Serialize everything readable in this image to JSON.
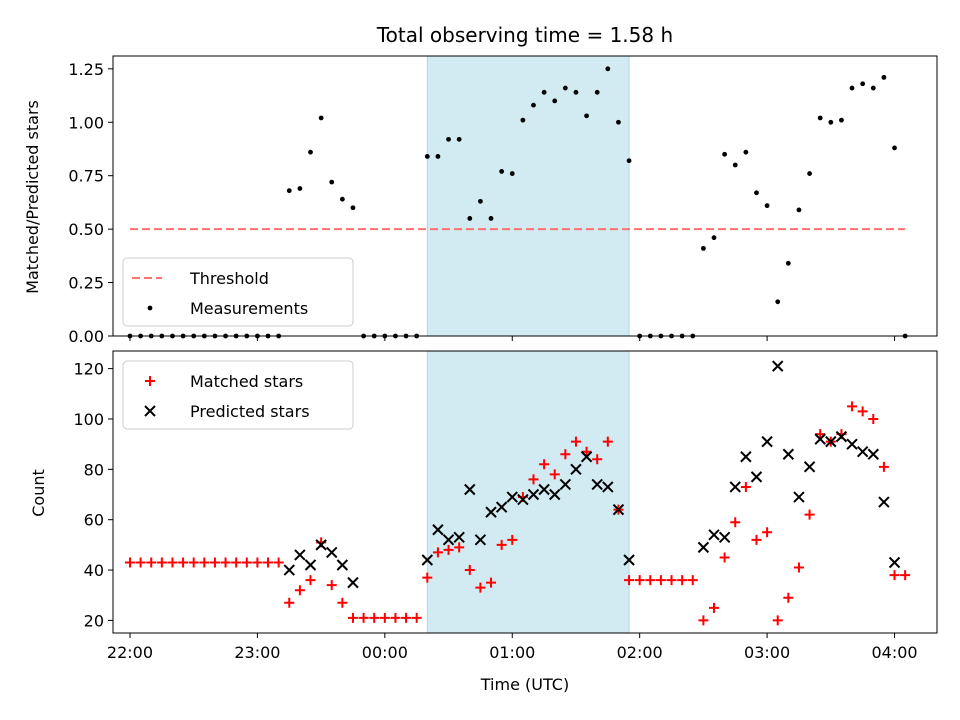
{
  "chart_data": {
    "title": "Total observing time = 1.58 h",
    "type": "scatter",
    "x_unit": "UTC time",
    "x_ticks": [
      "22:00",
      "23:00",
      "00:00",
      "01:00",
      "02:00",
      "03:00",
      "04:00"
    ],
    "x_range": [
      "21:52",
      "04:20"
    ],
    "shaded_interval": {
      "start": "00:20",
      "end": "01:55",
      "color": "#add8e6"
    },
    "top": {
      "ylabel": "Matched/Predicted stars",
      "ylim": [
        0,
        1.31
      ],
      "yticks": [
        "0.00",
        "0.25",
        "0.50",
        "0.75",
        "1.00",
        "1.25"
      ],
      "threshold": {
        "name": "Threshold",
        "value": 0.5,
        "from": "22:00",
        "to": "04:05",
        "color": "#ff7070"
      },
      "series": [
        {
          "name": "Measurements",
          "color": "#000000",
          "points": [
            [
              "22:00",
              0
            ],
            [
              "22:05",
              0
            ],
            [
              "22:10",
              0
            ],
            [
              "22:15",
              0
            ],
            [
              "22:20",
              0
            ],
            [
              "22:25",
              0
            ],
            [
              "22:30",
              0
            ],
            [
              "22:35",
              0
            ],
            [
              "22:40",
              0
            ],
            [
              "22:45",
              0
            ],
            [
              "22:50",
              0
            ],
            [
              "22:55",
              0
            ],
            [
              "23:00",
              0
            ],
            [
              "23:05",
              0
            ],
            [
              "23:10",
              0
            ],
            [
              "23:15",
              0.68
            ],
            [
              "23:20",
              0.69
            ],
            [
              "23:25",
              0.86
            ],
            [
              "23:30",
              1.02
            ],
            [
              "23:35",
              0.72
            ],
            [
              "23:40",
              0.64
            ],
            [
              "23:45",
              0.6
            ],
            [
              "23:50",
              0
            ],
            [
              "23:55",
              0
            ],
            [
              "00:00",
              0
            ],
            [
              "00:05",
              0
            ],
            [
              "00:10",
              0
            ],
            [
              "00:15",
              0
            ],
            [
              "00:20",
              0.84
            ],
            [
              "00:25",
              0.84
            ],
            [
              "00:30",
              0.92
            ],
            [
              "00:35",
              0.92
            ],
            [
              "00:40",
              0.55
            ],
            [
              "00:45",
              0.63
            ],
            [
              "00:50",
              0.55
            ],
            [
              "00:55",
              0.77
            ],
            [
              "01:00",
              0.76
            ],
            [
              "01:05",
              1.01
            ],
            [
              "01:10",
              1.08
            ],
            [
              "01:15",
              1.14
            ],
            [
              "01:20",
              1.1
            ],
            [
              "01:25",
              1.16
            ],
            [
              "01:30",
              1.14
            ],
            [
              "01:35",
              1.03
            ],
            [
              "01:40",
              1.14
            ],
            [
              "01:45",
              1.25
            ],
            [
              "01:50",
              1.0
            ],
            [
              "01:55",
              0.82
            ],
            [
              "02:00",
              0
            ],
            [
              "02:05",
              0
            ],
            [
              "02:10",
              0
            ],
            [
              "02:15",
              0
            ],
            [
              "02:20",
              0
            ],
            [
              "02:25",
              0
            ],
            [
              "02:30",
              0.41
            ],
            [
              "02:35",
              0.46
            ],
            [
              "02:40",
              0.85
            ],
            [
              "02:45",
              0.8
            ],
            [
              "02:50",
              0.86
            ],
            [
              "02:55",
              0.67
            ],
            [
              "03:00",
              0.61
            ],
            [
              "03:05",
              0.16
            ],
            [
              "03:10",
              0.34
            ],
            [
              "03:15",
              0.59
            ],
            [
              "03:20",
              0.76
            ],
            [
              "03:25",
              1.02
            ],
            [
              "03:30",
              1.0
            ],
            [
              "03:35",
              1.01
            ],
            [
              "03:40",
              1.16
            ],
            [
              "03:45",
              1.18
            ],
            [
              "03:50",
              1.16
            ],
            [
              "03:55",
              1.21
            ],
            [
              "04:00",
              0.88
            ],
            [
              "04:05",
              0
            ]
          ]
        }
      ],
      "legend": {
        "position": "lower-left",
        "entries": [
          "Threshold",
          "Measurements"
        ]
      }
    },
    "bottom": {
      "ylabel": "Count",
      "xlabel": "Time (UTC)",
      "ylim": [
        15,
        127
      ],
      "yticks": [
        "20",
        "40",
        "60",
        "80",
        "100",
        "120"
      ],
      "series": [
        {
          "name": "Matched stars",
          "marker": "plus",
          "color": "#ff0000",
          "points": [
            [
              "22:00",
              43
            ],
            [
              "22:05",
              43
            ],
            [
              "22:10",
              43
            ],
            [
              "22:15",
              43
            ],
            [
              "22:20",
              43
            ],
            [
              "22:25",
              43
            ],
            [
              "22:30",
              43
            ],
            [
              "22:35",
              43
            ],
            [
              "22:40",
              43
            ],
            [
              "22:45",
              43
            ],
            [
              "22:50",
              43
            ],
            [
              "22:55",
              43
            ],
            [
              "23:00",
              43
            ],
            [
              "23:05",
              43
            ],
            [
              "23:10",
              43
            ],
            [
              "23:15",
              27
            ],
            [
              "23:20",
              32
            ],
            [
              "23:25",
              36
            ],
            [
              "23:30",
              51
            ],
            [
              "23:35",
              34
            ],
            [
              "23:40",
              27
            ],
            [
              "23:45",
              21
            ],
            [
              "23:50",
              21
            ],
            [
              "23:55",
              21
            ],
            [
              "00:00",
              21
            ],
            [
              "00:05",
              21
            ],
            [
              "00:10",
              21
            ],
            [
              "00:15",
              21
            ],
            [
              "00:20",
              37
            ],
            [
              "00:25",
              47
            ],
            [
              "00:30",
              48
            ],
            [
              "00:35",
              49
            ],
            [
              "00:40",
              40
            ],
            [
              "00:45",
              33
            ],
            [
              "00:50",
              35
            ],
            [
              "00:55",
              50
            ],
            [
              "01:00",
              52
            ],
            [
              "01:05",
              69
            ],
            [
              "01:10",
              76
            ],
            [
              "01:15",
              82
            ],
            [
              "01:20",
              78
            ],
            [
              "01:25",
              86
            ],
            [
              "01:30",
              91
            ],
            [
              "01:35",
              87
            ],
            [
              "01:40",
              84
            ],
            [
              "01:45",
              91
            ],
            [
              "01:50",
              64
            ],
            [
              "01:55",
              36
            ],
            [
              "02:00",
              36
            ],
            [
              "02:05",
              36
            ],
            [
              "02:10",
              36
            ],
            [
              "02:15",
              36
            ],
            [
              "02:20",
              36
            ],
            [
              "02:25",
              36
            ],
            [
              "02:30",
              20
            ],
            [
              "02:35",
              25
            ],
            [
              "02:40",
              45
            ],
            [
              "02:45",
              59
            ],
            [
              "02:50",
              73
            ],
            [
              "02:55",
              52
            ],
            [
              "03:00",
              55
            ],
            [
              "03:05",
              20
            ],
            [
              "03:10",
              29
            ],
            [
              "03:15",
              41
            ],
            [
              "03:20",
              62
            ],
            [
              "03:25",
              94
            ],
            [
              "03:30",
              91
            ],
            [
              "03:35",
              94
            ],
            [
              "03:40",
              105
            ],
            [
              "03:45",
              103
            ],
            [
              "03:50",
              100
            ],
            [
              "03:55",
              81
            ],
            [
              "04:00",
              38
            ],
            [
              "04:05",
              38
            ]
          ]
        },
        {
          "name": "Predicted stars",
          "marker": "x",
          "color": "#000000",
          "points": [
            [
              "23:15",
              40
            ],
            [
              "23:20",
              46
            ],
            [
              "23:25",
              42
            ],
            [
              "23:30",
              50
            ],
            [
              "23:35",
              47
            ],
            [
              "23:40",
              42
            ],
            [
              "23:45",
              35
            ],
            [
              "00:20",
              44
            ],
            [
              "00:25",
              56
            ],
            [
              "00:30",
              52
            ],
            [
              "00:35",
              53
            ],
            [
              "00:40",
              72
            ],
            [
              "00:45",
              52
            ],
            [
              "00:50",
              63
            ],
            [
              "00:55",
              65
            ],
            [
              "01:00",
              69
            ],
            [
              "01:05",
              68
            ],
            [
              "01:10",
              70
            ],
            [
              "01:15",
              72
            ],
            [
              "01:20",
              70
            ],
            [
              "01:25",
              74
            ],
            [
              "01:30",
              80
            ],
            [
              "01:35",
              85
            ],
            [
              "01:40",
              74
            ],
            [
              "01:45",
              73
            ],
            [
              "01:50",
              64
            ],
            [
              "01:55",
              44
            ],
            [
              "02:30",
              49
            ],
            [
              "02:35",
              54
            ],
            [
              "02:40",
              53
            ],
            [
              "02:45",
              73
            ],
            [
              "02:50",
              85
            ],
            [
              "02:55",
              77
            ],
            [
              "03:00",
              91
            ],
            [
              "03:05",
              121
            ],
            [
              "03:10",
              86
            ],
            [
              "03:15",
              69
            ],
            [
              "03:20",
              81
            ],
            [
              "03:25",
              92
            ],
            [
              "03:30",
              91
            ],
            [
              "03:35",
              93
            ],
            [
              "03:40",
              90
            ],
            [
              "03:45",
              87
            ],
            [
              "03:50",
              86
            ],
            [
              "03:55",
              67
            ],
            [
              "04:00",
              43
            ]
          ]
        }
      ],
      "legend": {
        "position": "upper-left",
        "entries": [
          "Matched stars",
          "Predicted stars"
        ]
      }
    }
  }
}
